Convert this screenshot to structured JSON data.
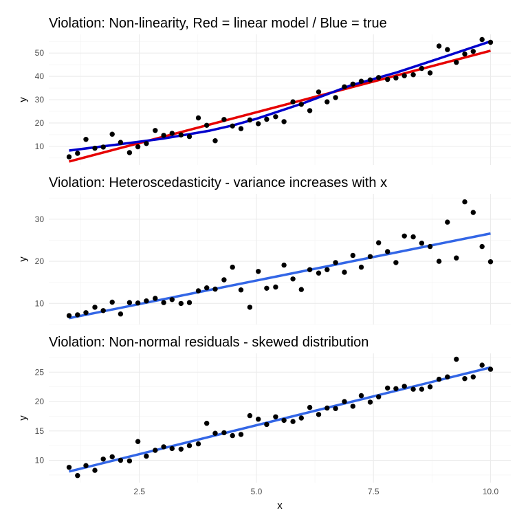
{
  "chart_data": [
    {
      "type": "scatter",
      "title": "Violation: Non-linearity, Red = linear model / Blue = true",
      "xlabel": "",
      "ylabel": "y",
      "xlim": [
        1,
        10
      ],
      "ylim": [
        2,
        58
      ],
      "x_ticks": [
        2.5,
        5.0,
        7.5,
        10.0
      ],
      "y_ticks": [
        10,
        20,
        30,
        40,
        50
      ],
      "y_tick_labels": [
        "10",
        "20",
        "30",
        "40",
        "50"
      ],
      "grid": true,
      "points": [
        [
          1.0,
          5.5
        ],
        [
          1.18,
          7.0
        ],
        [
          1.36,
          13.0
        ],
        [
          1.55,
          9.2
        ],
        [
          1.73,
          9.7
        ],
        [
          1.92,
          15.2
        ],
        [
          2.1,
          11.7
        ],
        [
          2.29,
          7.3
        ],
        [
          2.47,
          9.8
        ],
        [
          2.65,
          11.2
        ],
        [
          2.84,
          16.8
        ],
        [
          3.02,
          14.7
        ],
        [
          3.2,
          15.6
        ],
        [
          3.39,
          14.9
        ],
        [
          3.57,
          14.2
        ],
        [
          3.76,
          22.2
        ],
        [
          3.94,
          19.0
        ],
        [
          4.12,
          12.4
        ],
        [
          4.31,
          21.5
        ],
        [
          4.49,
          18.7
        ],
        [
          4.67,
          17.6
        ],
        [
          4.86,
          21.3
        ],
        [
          5.04,
          19.7
        ],
        [
          5.22,
          21.6
        ],
        [
          5.41,
          22.7
        ],
        [
          5.59,
          20.6
        ],
        [
          5.78,
          29.1
        ],
        [
          5.96,
          28.0
        ],
        [
          6.14,
          25.3
        ],
        [
          6.33,
          33.3
        ],
        [
          6.51,
          29.1
        ],
        [
          6.69,
          30.9
        ],
        [
          6.88,
          35.5
        ],
        [
          7.06,
          36.7
        ],
        [
          7.24,
          37.9
        ],
        [
          7.43,
          38.5
        ],
        [
          7.61,
          39.5
        ],
        [
          7.8,
          38.7
        ],
        [
          7.98,
          39.3
        ],
        [
          8.16,
          40.3
        ],
        [
          8.35,
          40.7
        ],
        [
          8.53,
          43.4
        ],
        [
          8.71,
          41.5
        ],
        [
          8.9,
          53.0
        ],
        [
          9.08,
          51.5
        ],
        [
          9.27,
          46.0
        ],
        [
          9.45,
          49.6
        ],
        [
          9.63,
          50.7
        ],
        [
          9.82,
          55.8
        ],
        [
          10.0,
          54.6
        ]
      ],
      "lines": [
        {
          "name": "Red = linear model",
          "color": "#e60000",
          "width": 3.5,
          "points": [
            [
              1.0,
              3.5
            ],
            [
              10.0,
              51.0
            ]
          ]
        },
        {
          "name": "Blue = true",
          "color": "#0000cc",
          "width": 3.5,
          "points": [
            [
              1.0,
              8.2
            ],
            [
              2.0,
              10.7
            ],
            [
              3.0,
              13.3
            ],
            [
              4.0,
              16.7
            ],
            [
              4.5,
              19.0
            ],
            [
              5.0,
              21.8
            ],
            [
              6.0,
              28.5
            ],
            [
              7.0,
              36.0
            ],
            [
              8.0,
              41.7
            ],
            [
              9.0,
              48.3
            ],
            [
              10.0,
              55.0
            ]
          ]
        }
      ],
      "point_color": "#000000"
    },
    {
      "type": "scatter",
      "title": "Violation: Heteroscedasticity - variance increases with x",
      "xlabel": "",
      "ylabel": "y",
      "xlim": [
        1,
        10
      ],
      "ylim": [
        5,
        36
      ],
      "x_ticks": [
        2.5,
        5.0,
        7.5,
        10.0
      ],
      "y_ticks": [
        10,
        20,
        30
      ],
      "y_tick_labels": [
        "10",
        "20",
        "30"
      ],
      "grid": true,
      "points": [
        [
          1.0,
          7.1
        ],
        [
          1.18,
          7.3
        ],
        [
          1.36,
          7.8
        ],
        [
          1.55,
          9.1
        ],
        [
          1.73,
          8.3
        ],
        [
          1.92,
          10.3
        ],
        [
          2.1,
          7.5
        ],
        [
          2.29,
          10.2
        ],
        [
          2.47,
          10.1
        ],
        [
          2.65,
          10.6
        ],
        [
          2.84,
          11.2
        ],
        [
          3.02,
          10.2
        ],
        [
          3.2,
          10.9
        ],
        [
          3.39,
          10.0
        ],
        [
          3.57,
          10.2
        ],
        [
          3.76,
          13.0
        ],
        [
          3.94,
          13.7
        ],
        [
          4.12,
          13.4
        ],
        [
          4.31,
          15.6
        ],
        [
          4.49,
          18.6
        ],
        [
          4.67,
          13.2
        ],
        [
          4.86,
          9.1
        ],
        [
          5.04,
          17.6
        ],
        [
          5.22,
          13.6
        ],
        [
          5.41,
          13.9
        ],
        [
          5.59,
          19.1
        ],
        [
          5.78,
          15.8
        ],
        [
          5.96,
          13.3
        ],
        [
          6.14,
          18.0
        ],
        [
          6.33,
          17.2
        ],
        [
          6.51,
          18.0
        ],
        [
          6.69,
          19.7
        ],
        [
          6.88,
          17.4
        ],
        [
          7.06,
          21.4
        ],
        [
          7.24,
          18.6
        ],
        [
          7.43,
          21.1
        ],
        [
          7.61,
          24.4
        ],
        [
          7.8,
          22.3
        ],
        [
          7.98,
          19.7
        ],
        [
          8.16,
          26.0
        ],
        [
          8.35,
          25.8
        ],
        [
          8.53,
          24.3
        ],
        [
          8.71,
          23.5
        ],
        [
          8.9,
          20.0
        ],
        [
          9.08,
          29.3
        ],
        [
          9.27,
          20.8
        ],
        [
          9.45,
          34.1
        ],
        [
          9.63,
          31.6
        ],
        [
          9.82,
          23.5
        ],
        [
          10.0,
          19.9
        ]
      ],
      "lines": [
        {
          "name": "",
          "color": "#3366e6",
          "width": 3.5,
          "points": [
            [
              1.0,
              6.5
            ],
            [
              10.0,
              26.6
            ]
          ]
        }
      ],
      "point_color": "#000000"
    },
    {
      "type": "scatter",
      "title": "Violation: Non-normal residuals - skewed distribution",
      "xlabel": "x",
      "ylabel": "y",
      "xlim": [
        1,
        10
      ],
      "ylim": [
        6.2,
        28.2
      ],
      "x_ticks": [
        2.5,
        5.0,
        7.5,
        10.0
      ],
      "x_tick_labels": [
        "2.5",
        "5.0",
        "7.5",
        "10.0"
      ],
      "y_ticks": [
        10,
        15,
        20,
        25
      ],
      "y_tick_labels": [
        "10",
        "15",
        "20",
        "25"
      ],
      "grid": true,
      "points": [
        [
          1.0,
          8.8
        ],
        [
          1.18,
          7.4
        ],
        [
          1.36,
          9.1
        ],
        [
          1.55,
          8.3
        ],
        [
          1.73,
          10.2
        ],
        [
          1.92,
          10.6
        ],
        [
          2.1,
          10.0
        ],
        [
          2.29,
          9.9
        ],
        [
          2.47,
          13.2
        ],
        [
          2.65,
          10.7
        ],
        [
          2.84,
          11.7
        ],
        [
          3.02,
          12.3
        ],
        [
          3.2,
          12.0
        ],
        [
          3.39,
          11.9
        ],
        [
          3.57,
          12.5
        ],
        [
          3.76,
          12.8
        ],
        [
          3.94,
          16.3
        ],
        [
          4.12,
          14.6
        ],
        [
          4.31,
          14.7
        ],
        [
          4.49,
          14.2
        ],
        [
          4.67,
          14.4
        ],
        [
          4.86,
          17.6
        ],
        [
          5.04,
          17.0
        ],
        [
          5.22,
          16.1
        ],
        [
          5.41,
          17.4
        ],
        [
          5.59,
          16.8
        ],
        [
          5.78,
          16.6
        ],
        [
          5.96,
          17.2
        ],
        [
          6.14,
          19.0
        ],
        [
          6.33,
          17.8
        ],
        [
          6.51,
          18.9
        ],
        [
          6.69,
          18.8
        ],
        [
          6.88,
          20.0
        ],
        [
          7.06,
          19.2
        ],
        [
          7.24,
          21.0
        ],
        [
          7.43,
          19.9
        ],
        [
          7.61,
          20.8
        ],
        [
          7.8,
          22.3
        ],
        [
          7.98,
          22.2
        ],
        [
          8.16,
          22.6
        ],
        [
          8.35,
          22.1
        ],
        [
          8.53,
          22.1
        ],
        [
          8.71,
          22.5
        ],
        [
          8.9,
          23.8
        ],
        [
          9.08,
          24.2
        ],
        [
          9.27,
          27.2
        ],
        [
          9.45,
          23.9
        ],
        [
          9.63,
          24.2
        ],
        [
          9.82,
          26.2
        ],
        [
          10.0,
          25.5
        ]
      ],
      "lines": [
        {
          "name": "",
          "color": "#3366e6",
          "width": 3.5,
          "points": [
            [
              1.0,
              8.1
            ],
            [
              10.0,
              25.8
            ]
          ]
        }
      ],
      "point_color": "#000000"
    }
  ]
}
